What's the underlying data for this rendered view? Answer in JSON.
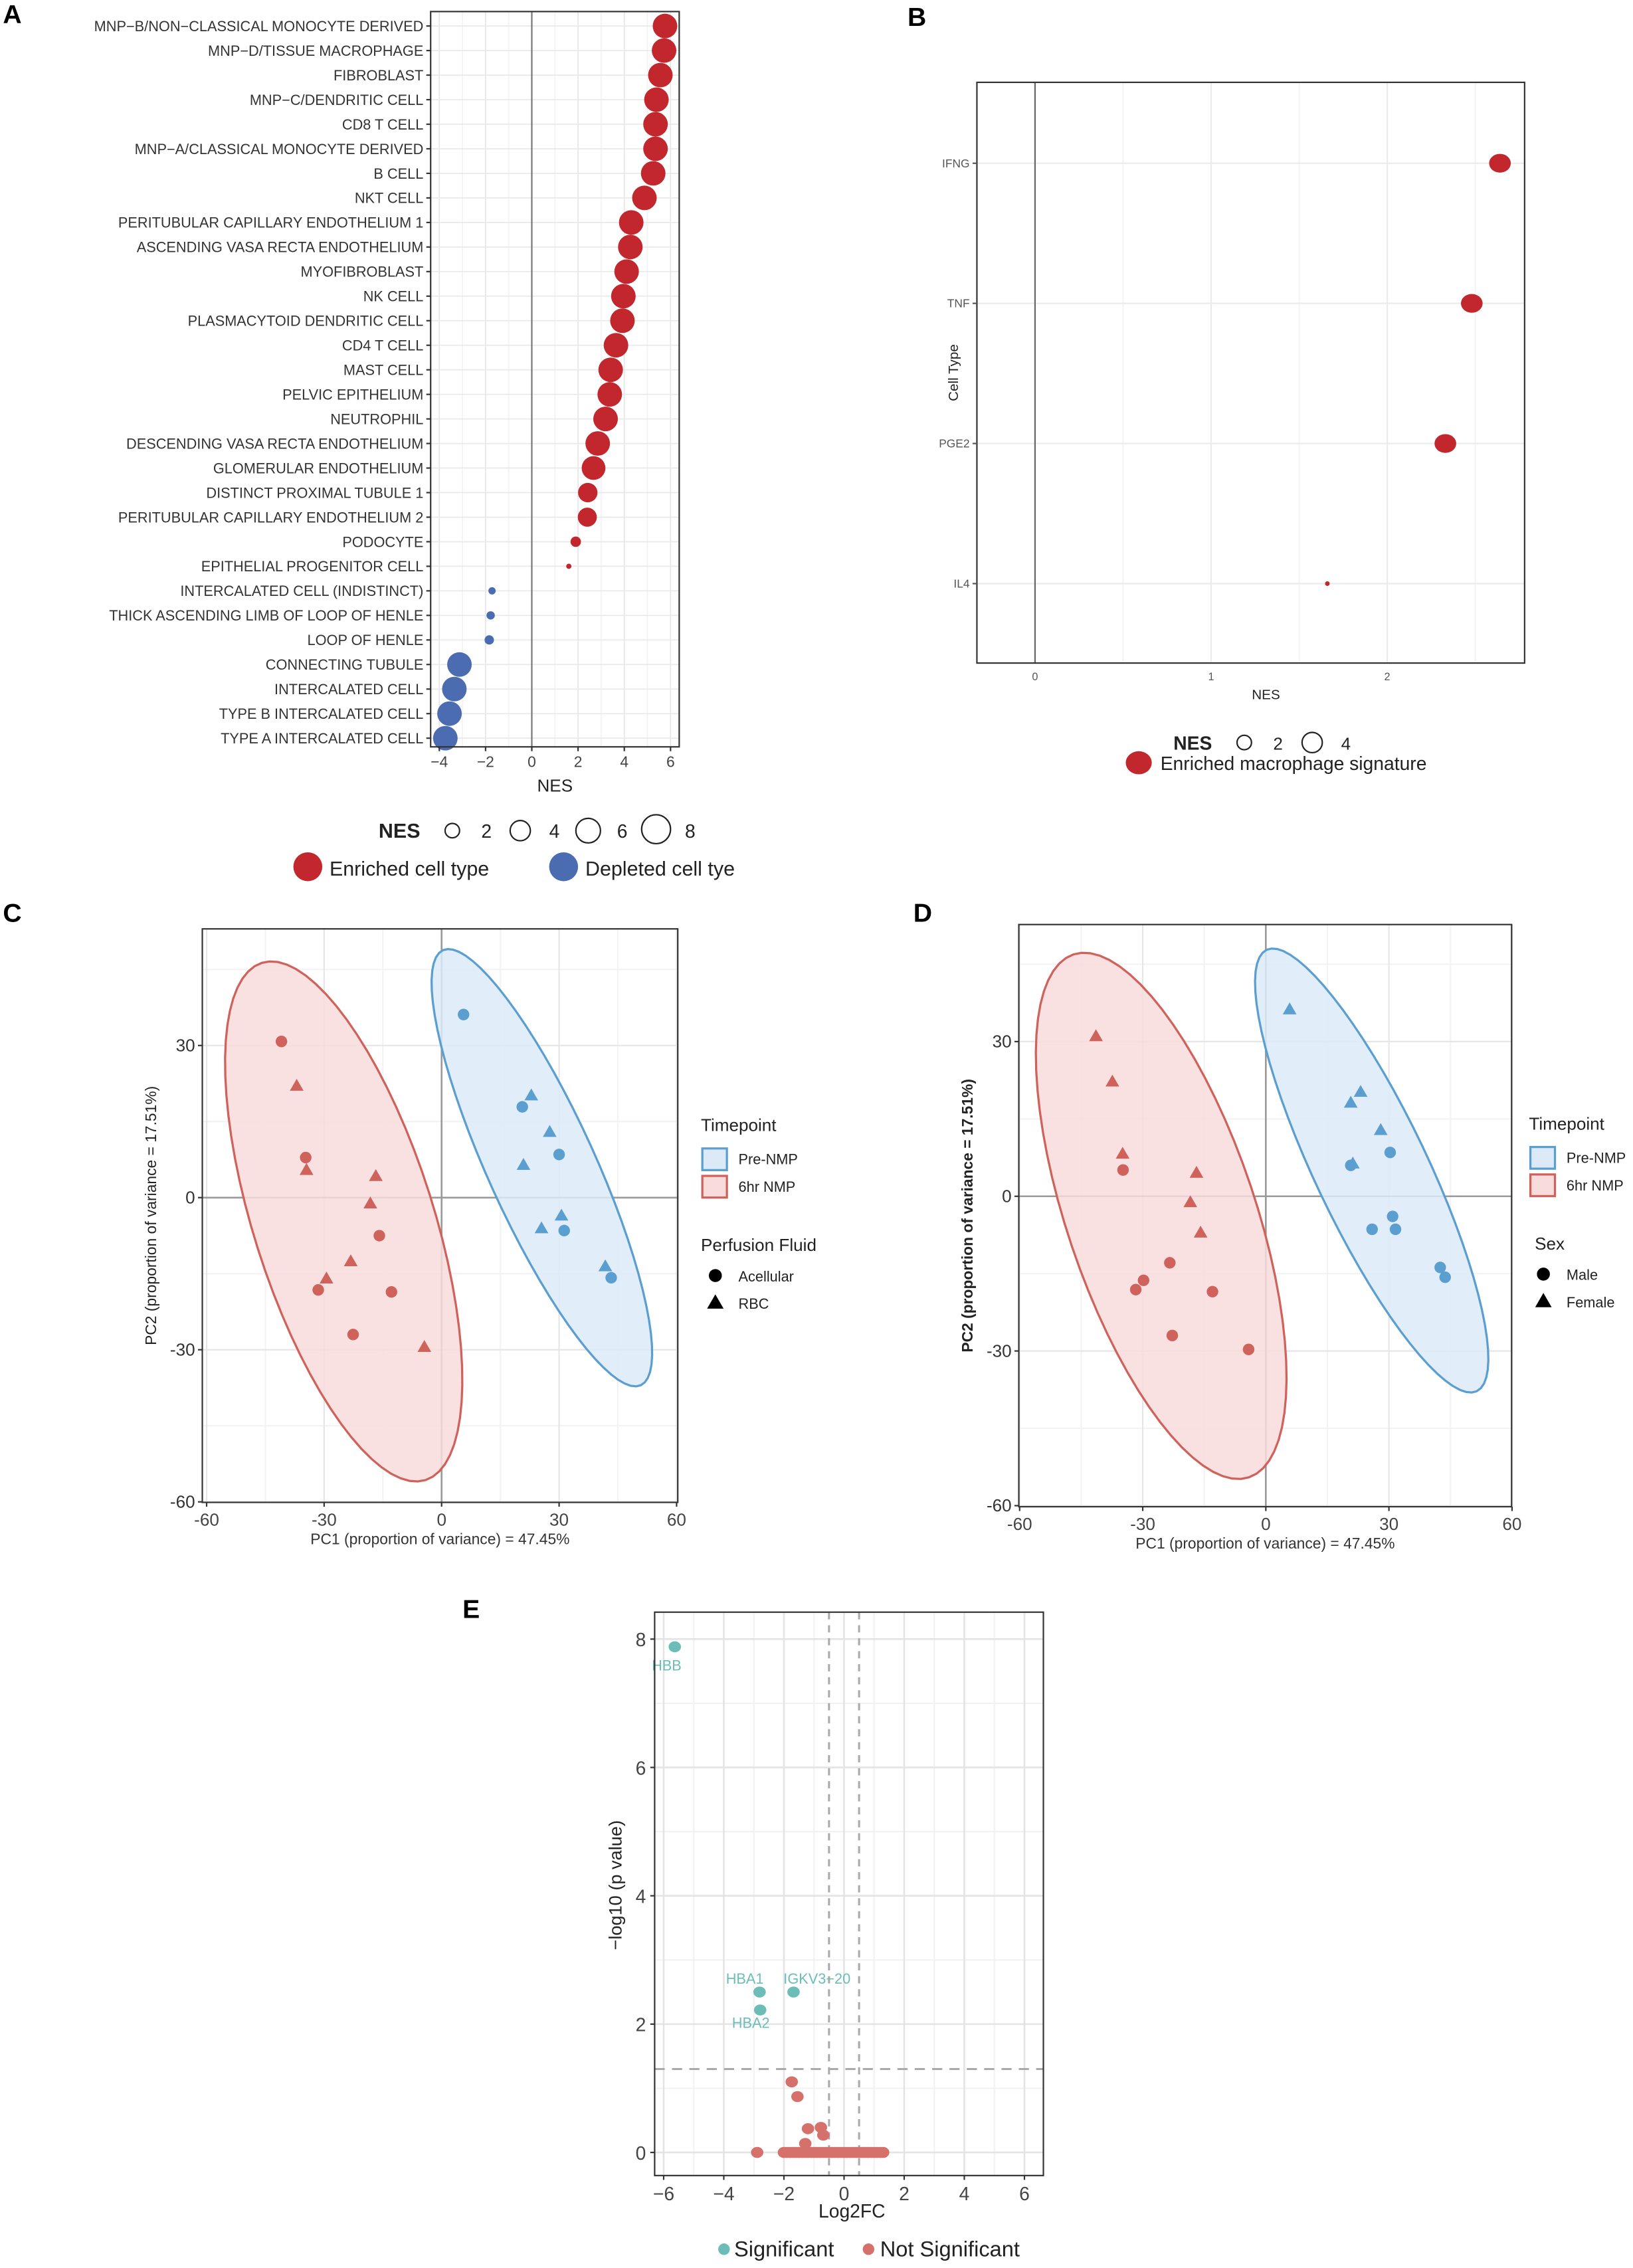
{
  "panels": {
    "a": "A",
    "b": "B",
    "c": "C",
    "d": "D",
    "e": "E"
  },
  "chart_data": [
    {
      "panel": "A",
      "type": "scatter",
      "xlabel": "NES",
      "xlim": [
        -4.375,
        6.375
      ],
      "xticks": [
        -4,
        -2,
        0,
        2,
        4,
        6
      ],
      "xtick_labels": [
        "−4",
        "−2",
        "0",
        "2",
        "4",
        "6"
      ],
      "categories": [
        "MNP−B/NON−CLASSICAL MONOCYTE DERIVED",
        "MNP−D/TISSUE MACROPHAGE",
        "FIBROBLAST",
        "MNP−C/DENDRITIC CELL",
        "CD8 T CELL",
        "MNP−A/CLASSICAL MONOCYTE DERIVED",
        "B CELL",
        "NKT CELL",
        "PERITUBULAR CAPILLARY ENDOTHELIUM 1",
        "ASCENDING VASA RECTA ENDOTHELIUM",
        "MYOFIBROBLAST",
        "NK CELL",
        "PLASMACYTOID DENDRITIC CELL",
        "CD4 T CELL",
        "MAST CELL",
        "PELVIC EPITHELIUM",
        "NEUTROPHIL",
        "DESCENDING VASA RECTA ENDOTHELIUM",
        "GLOMERULAR ENDOTHELIUM",
        "DISTINCT PROXIMAL TUBULE 1",
        "PERITUBULAR CAPILLARY ENDOTHELIUM 2",
        "PODOCYTE",
        "EPITHELIAL PROGENITOR CELL",
        "INTERCALATED CELL (INDISTINCT)",
        "THICK ASCENDING LIMB OF LOOP OF HENLE",
        "LOOP OF HENLE",
        "CONNECTING TUBULE",
        "INTERCALATED CELL",
        "TYPE B INTERCALATED CELL",
        "TYPE A INTERCALATED CELL"
      ],
      "values": [
        5.76,
        5.72,
        5.56,
        5.39,
        5.35,
        5.35,
        5.25,
        4.87,
        4.3,
        4.26,
        4.1,
        3.96,
        3.92,
        3.64,
        3.41,
        3.37,
        3.19,
        2.85,
        2.67,
        2.42,
        2.4,
        1.9,
        1.6,
        -1.72,
        -1.78,
        -1.84,
        -3.13,
        -3.35,
        -3.56,
        -3.74
      ],
      "size_legend": {
        "title": "NES",
        "values": [
          "2",
          "4",
          "6",
          "8"
        ]
      },
      "legend": [
        {
          "label": "Enriched cell type",
          "color": "#c1272d"
        },
        {
          "label": "Depleted cell tye",
          "color": "#4b6cb0"
        }
      ]
    },
    {
      "panel": "B",
      "type": "scatter",
      "xlabel": "NES",
      "ylabel": "Cell Type",
      "xlim": [
        -0.33,
        2.78
      ],
      "xticks": [
        0,
        1,
        2
      ],
      "xtick_labels": [
        "0",
        "1",
        "2"
      ],
      "categories": [
        "IFNG",
        "TNF",
        "PGE2",
        "IL4"
      ],
      "values": [
        2.64,
        2.48,
        2.33,
        1.66
      ],
      "size_legend": {
        "title": "NES",
        "values": [
          "2",
          "4"
        ]
      },
      "legend": [
        {
          "label": "Enriched macrophage signature",
          "color": "#c1272d"
        }
      ]
    },
    {
      "panel": "C",
      "type": "scatter",
      "xlabel": "PC1 (proportion of variance) = 47.45%",
      "ylabel": "PC2 (proportion of variance = 17.51%)",
      "xlim": [
        -61.1,
        60.3
      ],
      "ylim": [
        -60.1,
        53
      ],
      "xticks": [
        -60,
        -30,
        0,
        30,
        60
      ],
      "xtick_labels": [
        "-60",
        "-30",
        "0",
        "30",
        "60"
      ],
      "yticks": [
        30,
        0,
        -30,
        -60
      ],
      "ytick_labels": [
        "30",
        "0",
        "-30",
        "-60"
      ],
      "legend_color_title": "Timepoint",
      "legend_shape_title": "Perfusion Fluid",
      "groups": [
        {
          "label": "Pre-NMP",
          "color": "#5b9fd1",
          "fill": "#dceaf7"
        },
        {
          "label": "6hr NMP",
          "color": "#d0625c",
          "fill": "#f7dcdb"
        }
      ],
      "shapes": [
        {
          "label": "Acellular",
          "shape": "circle"
        },
        {
          "label": "RBC",
          "shape": "triangle"
        }
      ],
      "ellipses": [
        {
          "group": "6hr NMP",
          "center": [
            -25.0,
            -4.7
          ],
          "tip": [
            -45.9,
            46.3
          ],
          "half_width": 23
        },
        {
          "group": "Pre-NMP",
          "center": [
            25.6,
            5.9
          ],
          "tip": [
            0.35,
            48.8
          ],
          "half_width": 13.7
        }
      ],
      "series": [
        {
          "group": "6hr NMP",
          "shape": "circle",
          "points": [
            [
              -40.9,
              30.8
            ],
            [
              -34.7,
              7.9
            ],
            [
              -15.9,
              -7.5
            ],
            [
              -31.5,
              -18.2
            ],
            [
              -12.8,
              -18.6
            ],
            [
              -22.6,
              -27
            ]
          ]
        },
        {
          "group": "6hr NMP",
          "shape": "triangle",
          "points": [
            [
              -37,
              22
            ],
            [
              -34.5,
              5.4
            ],
            [
              -16.8,
              4.2
            ],
            [
              -18.2,
              -1.2
            ],
            [
              -23.2,
              -12.6
            ],
            [
              -29.4,
              -16
            ],
            [
              -4.4,
              -29.5
            ]
          ]
        },
        {
          "group": "Pre-NMP",
          "shape": "circle",
          "points": [
            [
              5.6,
              36.1
            ],
            [
              20.6,
              17.9
            ],
            [
              30,
              8.5
            ],
            [
              31.3,
              -6.5
            ],
            [
              43.3,
              -15.8
            ]
          ]
        },
        {
          "group": "Pre-NMP",
          "shape": "triangle",
          "points": [
            [
              22.9,
              20.1
            ],
            [
              27.6,
              12.9
            ],
            [
              20.9,
              6.4
            ],
            [
              30.6,
              -3.6
            ],
            [
              25.5,
              -6.1
            ],
            [
              41.8,
              -13.6
            ]
          ]
        }
      ]
    },
    {
      "panel": "D",
      "type": "scatter",
      "xlabel": "PC1 (proportion of variance) = 47.45%",
      "ylabel": "PC2 (proportion of variance = 17.51%)",
      "xlim": [
        -60.2,
        59.9
      ],
      "ylim": [
        -60.2,
        52.7
      ],
      "xticks": [
        -60,
        -30,
        0,
        30,
        60
      ],
      "xtick_labels": [
        "-60",
        "-30",
        "0",
        "30",
        "60"
      ],
      "yticks": [
        30,
        0,
        -30,
        -60
      ],
      "ytick_labels": [
        "30",
        "0",
        "-30",
        "-60"
      ],
      "legend_color_title": "Timepoint",
      "legend_shape_title": "Sex",
      "groups": [
        {
          "label": "Pre-NMP",
          "color": "#5b9fd1",
          "fill": "#dceaf7"
        },
        {
          "label": "6hr NMP",
          "color": "#d0625c",
          "fill": "#f7dcdb"
        }
      ],
      "shapes": [
        {
          "label": "Male",
          "shape": "circle"
        },
        {
          "label": "Female",
          "shape": "triangle"
        }
      ],
      "ellipses": [
        {
          "group": "6hr NMP",
          "center": [
            -25.5,
            -3.8
          ],
          "tip": [
            -46.9,
            46.9
          ],
          "half_width": 23
        },
        {
          "group": "Pre-NMP",
          "center": [
            25.8,
            5.0
          ],
          "tip": [
            0.2,
            47.8
          ],
          "half_width": 13.7
        }
      ],
      "series": [
        {
          "group": "6hr NMP",
          "shape": "triangle",
          "points": [
            [
              -41.4,
              31
            ],
            [
              -37.4,
              22.2
            ],
            [
              -34.9,
              8.2
            ],
            [
              -16.9,
              4.5
            ],
            [
              -18.4,
              -1.2
            ],
            [
              -15.9,
              -7.1
            ]
          ]
        },
        {
          "group": "6hr NMP",
          "shape": "circle",
          "points": [
            [
              -34.8,
              5.1
            ],
            [
              -23.4,
              -12.9
            ],
            [
              -29.8,
              -16.3
            ],
            [
              -31.7,
              -18.1
            ],
            [
              -13,
              -18.5
            ],
            [
              -22.8,
              -27
            ],
            [
              -4.2,
              -29.7
            ]
          ]
        },
        {
          "group": "Pre-NMP",
          "shape": "triangle",
          "points": [
            [
              5.8,
              36.2
            ],
            [
              23.1,
              20.2
            ],
            [
              20.7,
              18.1
            ],
            [
              28,
              12.8
            ],
            [
              21.2,
              6.3
            ]
          ]
        },
        {
          "group": "Pre-NMP",
          "shape": "circle",
          "points": [
            [
              30.3,
              8.5
            ],
            [
              20.7,
              6
            ],
            [
              30.9,
              -3.9
            ],
            [
              25.9,
              -6.4
            ],
            [
              31.6,
              -6.4
            ],
            [
              42.5,
              -13.8
            ],
            [
              43.7,
              -15.7
            ]
          ]
        }
      ]
    },
    {
      "panel": "E",
      "type": "scatter",
      "xlabel": "Log2FC",
      "ylabel": "−log10 (p value)",
      "xlim": [
        -6.3,
        6.63
      ],
      "ylim": [
        -0.36,
        8.42
      ],
      "xticks": [
        -6,
        -4,
        -2,
        0,
        2,
        4,
        6
      ],
      "xtick_labels": [
        "−6",
        "−4",
        "−2",
        "0",
        "2",
        "4",
        "6"
      ],
      "yticks": [
        0,
        2,
        4,
        6,
        8
      ],
      "ytick_labels": [
        "0",
        "2",
        "4",
        "6",
        "8"
      ],
      "thresholds": {
        "log2fc": [
          -0.5,
          0.5
        ],
        "neg_log10_p": 1.3
      },
      "legend": [
        {
          "label": "Significant",
          "color": "#6cbdb8"
        },
        {
          "label": "Not Significant",
          "color": "#d6706a"
        }
      ],
      "significant": [
        {
          "gene": "HBB",
          "x": -5.63,
          "y": 7.88,
          "label_at": [
            -5.9,
            7.6
          ]
        },
        {
          "gene": "HBA1",
          "x": -2.81,
          "y": 2.5,
          "label_at": [
            -3.3,
            2.72
          ]
        },
        {
          "gene": "HBA2",
          "x": -2.79,
          "y": 2.22,
          "label_at": [
            -3.1,
            2.03
          ]
        },
        {
          "gene": "IGKV3−20",
          "x": -1.68,
          "y": 2.5,
          "label_at": [
            -0.9,
            2.72
          ]
        }
      ],
      "not_significant": [
        [
          -2.89,
          0
        ],
        [
          -1.74,
          1.1
        ],
        [
          -1.55,
          0.87
        ],
        [
          -1.2,
          0.37
        ],
        [
          -0.77,
          0.39
        ],
        [
          -0.69,
          0.27
        ],
        [
          -1.29,
          0.14
        ],
        [
          -2.0,
          0
        ],
        [
          -1.9,
          0
        ],
        [
          -1.8,
          0
        ],
        [
          -1.7,
          0
        ],
        [
          -1.6,
          0
        ],
        [
          -1.5,
          0
        ],
        [
          -1.4,
          0
        ],
        [
          -1.3,
          0
        ],
        [
          -1.2,
          0
        ],
        [
          -1.1,
          0
        ],
        [
          -1.0,
          0
        ],
        [
          -0.9,
          0
        ],
        [
          -0.8,
          0
        ],
        [
          -0.7,
          0
        ],
        [
          -0.6,
          0
        ],
        [
          -0.5,
          0
        ],
        [
          -0.4,
          0
        ],
        [
          -0.3,
          0
        ],
        [
          -0.2,
          0
        ],
        [
          -0.1,
          0
        ],
        [
          0.0,
          0
        ],
        [
          0.1,
          0
        ],
        [
          0.2,
          0
        ],
        [
          0.3,
          0
        ],
        [
          0.4,
          0
        ],
        [
          0.5,
          0
        ],
        [
          0.6,
          0
        ],
        [
          0.7,
          0
        ],
        [
          0.8,
          0
        ],
        [
          0.9,
          0
        ],
        [
          1.0,
          0
        ],
        [
          1.1,
          0
        ],
        [
          1.2,
          0
        ],
        [
          1.3,
          0
        ]
      ]
    }
  ]
}
